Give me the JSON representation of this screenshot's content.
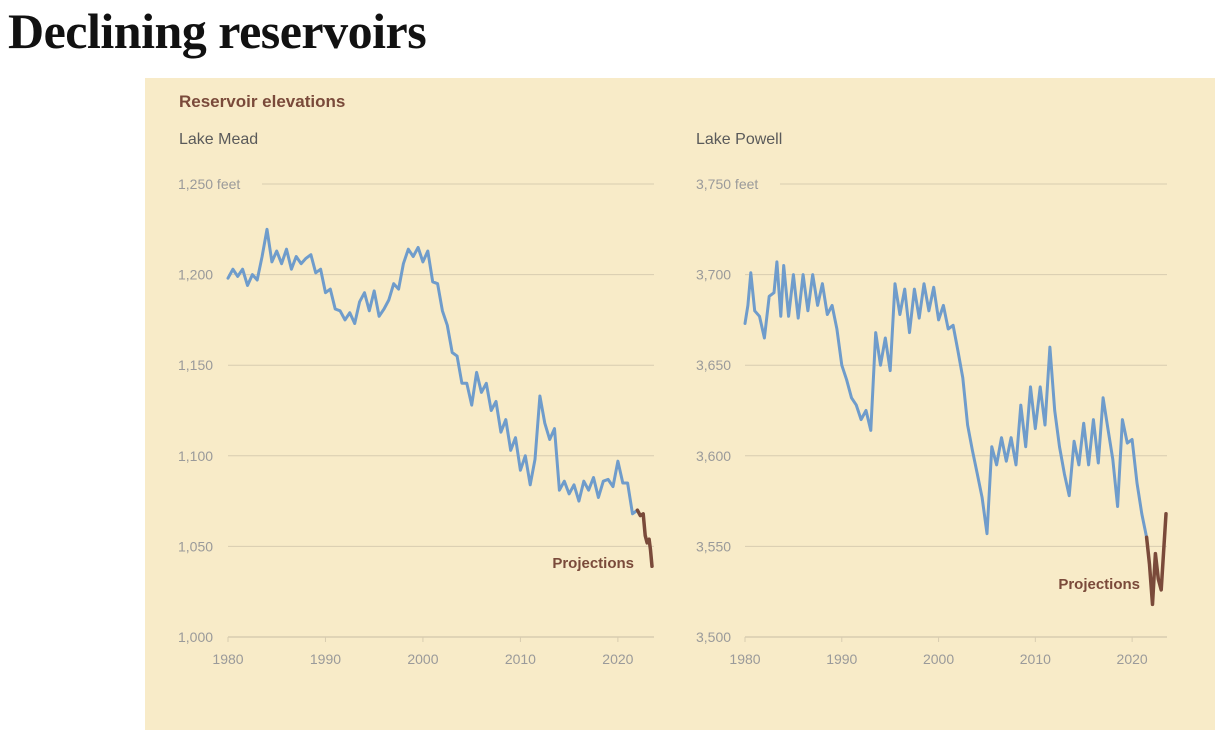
{
  "page": {
    "title": "Declining reservoirs"
  },
  "panel": {
    "title": "Reservoir elevations"
  },
  "colors": {
    "observed": "#6f9ccb",
    "projection": "#7a4a3a",
    "grid": "#d8ccb0",
    "panel_bg": "#f8ebc8"
  },
  "chart_data": [
    {
      "type": "line",
      "subtitle": "Lake Mead",
      "ylabel": "",
      "xlabel": "",
      "xlim": [
        1980,
        2023.5
      ],
      "ylim": [
        1000,
        1250
      ],
      "x_ticks": [
        1980,
        1990,
        2000,
        2010,
        2020
      ],
      "x_tick_labels": [
        "1980",
        "1990",
        "2000",
        "2010",
        "2020"
      ],
      "y_ticks": [
        1000,
        1050,
        1100,
        1150,
        1200,
        1250
      ],
      "y_tick_labels": [
        "1,000",
        "1,050",
        "1,100",
        "1,150",
        "1,200",
        "1,250 feet"
      ],
      "grid": true,
      "annotation": "Projections",
      "series": [
        {
          "role": "observed",
          "points": [
            [
              1980,
              1198
            ],
            [
              1980.5,
              1203
            ],
            [
              1981,
              1199
            ],
            [
              1981.5,
              1203
            ],
            [
              1982,
              1194
            ],
            [
              1982.5,
              1200
            ],
            [
              1983,
              1197
            ],
            [
              1983.5,
              1210
            ],
            [
              1984,
              1225
            ],
            [
              1984.5,
              1207
            ],
            [
              1985,
              1213
            ],
            [
              1985.5,
              1206
            ],
            [
              1986,
              1214
            ],
            [
              1986.5,
              1203
            ],
            [
              1987,
              1210
            ],
            [
              1987.5,
              1206
            ],
            [
              1988,
              1209
            ],
            [
              1988.5,
              1211
            ],
            [
              1989,
              1201
            ],
            [
              1989.5,
              1203
            ],
            [
              1990,
              1190
            ],
            [
              1990.5,
              1192
            ],
            [
              1991,
              1181
            ],
            [
              1991.5,
              1180
            ],
            [
              1992,
              1175
            ],
            [
              1992.5,
              1179
            ],
            [
              1993,
              1173
            ],
            [
              1993.5,
              1185
            ],
            [
              1994,
              1190
            ],
            [
              1994.5,
              1180
            ],
            [
              1995,
              1191
            ],
            [
              1995.5,
              1177
            ],
            [
              1996,
              1181
            ],
            [
              1996.5,
              1186
            ],
            [
              1997,
              1195
            ],
            [
              1997.5,
              1192
            ],
            [
              1998,
              1206
            ],
            [
              1998.5,
              1214
            ],
            [
              1999,
              1210
            ],
            [
              1999.5,
              1215
            ],
            [
              2000,
              1207
            ],
            [
              2000.5,
              1213
            ],
            [
              2001,
              1196
            ],
            [
              2001.5,
              1195
            ],
            [
              2002,
              1180
            ],
            [
              2002.5,
              1172
            ],
            [
              2003,
              1157
            ],
            [
              2003.5,
              1155
            ],
            [
              2004,
              1140
            ],
            [
              2004.5,
              1140
            ],
            [
              2005,
              1128
            ],
            [
              2005.5,
              1146
            ],
            [
              2006,
              1135
            ],
            [
              2006.5,
              1140
            ],
            [
              2007,
              1125
            ],
            [
              2007.5,
              1130
            ],
            [
              2008,
              1113
            ],
            [
              2008.5,
              1120
            ],
            [
              2009,
              1103
            ],
            [
              2009.5,
              1110
            ],
            [
              2010,
              1092
            ],
            [
              2010.5,
              1100
            ],
            [
              2011,
              1084
            ],
            [
              2011.5,
              1098
            ],
            [
              2012,
              1133
            ],
            [
              2012.5,
              1118
            ],
            [
              2013,
              1109
            ],
            [
              2013.5,
              1115
            ],
            [
              2014,
              1081
            ],
            [
              2014.5,
              1086
            ],
            [
              2015,
              1079
            ],
            [
              2015.5,
              1084
            ],
            [
              2016,
              1075
            ],
            [
              2016.5,
              1086
            ],
            [
              2017,
              1081
            ],
            [
              2017.5,
              1088
            ],
            [
              2018,
              1077
            ],
            [
              2018.5,
              1086
            ],
            [
              2019,
              1087
            ],
            [
              2019.5,
              1083
            ],
            [
              2020,
              1097
            ],
            [
              2020.5,
              1085
            ],
            [
              2021,
              1085
            ],
            [
              2021.5,
              1068
            ],
            [
              2022,
              1070
            ]
          ]
        },
        {
          "role": "projection",
          "points": [
            [
              2022,
              1070
            ],
            [
              2022.3,
              1067
            ],
            [
              2022.6,
              1068
            ],
            [
              2022.8,
              1056
            ],
            [
              2023,
              1052
            ],
            [
              2023.2,
              1054
            ],
            [
              2023.35,
              1048
            ],
            [
              2023.5,
              1039
            ]
          ]
        }
      ]
    },
    {
      "type": "line",
      "subtitle": "Lake Powell",
      "ylabel": "",
      "xlabel": "",
      "xlim": [
        1980,
        2023.5
      ],
      "ylim": [
        3500,
        3750
      ],
      "x_ticks": [
        1980,
        1990,
        2000,
        2010,
        2020
      ],
      "x_tick_labels": [
        "1980",
        "1990",
        "2000",
        "2010",
        "2020"
      ],
      "y_ticks": [
        3500,
        3550,
        3600,
        3650,
        3700,
        3750
      ],
      "y_tick_labels": [
        "3,500",
        "3,550",
        "3,600",
        "3,650",
        "3,700",
        "3,750 feet"
      ],
      "grid": true,
      "annotation": "Projections",
      "series": [
        {
          "role": "observed",
          "points": [
            [
              1980,
              3673
            ],
            [
              1980.3,
              3683
            ],
            [
              1980.6,
              3701
            ],
            [
              1981,
              3680
            ],
            [
              1981.5,
              3677
            ],
            [
              1982,
              3665
            ],
            [
              1982.5,
              3688
            ],
            [
              1983,
              3690
            ],
            [
              1983.3,
              3707
            ],
            [
              1983.7,
              3677
            ],
            [
              1984,
              3705
            ],
            [
              1984.5,
              3677
            ],
            [
              1985,
              3700
            ],
            [
              1985.5,
              3676
            ],
            [
              1986,
              3700
            ],
            [
              1986.5,
              3680
            ],
            [
              1987,
              3700
            ],
            [
              1987.5,
              3683
            ],
            [
              1988,
              3695
            ],
            [
              1988.5,
              3678
            ],
            [
              1989,
              3683
            ],
            [
              1989.5,
              3670
            ],
            [
              1990,
              3650
            ],
            [
              1990.5,
              3642
            ],
            [
              1991,
              3632
            ],
            [
              1991.5,
              3628
            ],
            [
              1992,
              3620
            ],
            [
              1992.5,
              3625
            ],
            [
              1993,
              3614
            ],
            [
              1993.5,
              3668
            ],
            [
              1994,
              3650
            ],
            [
              1994.5,
              3665
            ],
            [
              1995,
              3647
            ],
            [
              1995.5,
              3695
            ],
            [
              1996,
              3678
            ],
            [
              1996.5,
              3692
            ],
            [
              1997,
              3668
            ],
            [
              1997.5,
              3692
            ],
            [
              1998,
              3676
            ],
            [
              1998.5,
              3695
            ],
            [
              1999,
              3680
            ],
            [
              1999.5,
              3693
            ],
            [
              2000,
              3675
            ],
            [
              2000.5,
              3683
            ],
            [
              2001,
              3670
            ],
            [
              2001.5,
              3672
            ],
            [
              2002,
              3658
            ],
            [
              2002.5,
              3643
            ],
            [
              2003,
              3617
            ],
            [
              2003.5,
              3603
            ],
            [
              2004,
              3590
            ],
            [
              2004.5,
              3577
            ],
            [
              2005,
              3557
            ],
            [
              2005.5,
              3605
            ],
            [
              2006,
              3595
            ],
            [
              2006.5,
              3610
            ],
            [
              2007,
              3597
            ],
            [
              2007.5,
              3610
            ],
            [
              2008,
              3595
            ],
            [
              2008.5,
              3628
            ],
            [
              2009,
              3605
            ],
            [
              2009.5,
              3638
            ],
            [
              2010,
              3615
            ],
            [
              2010.5,
              3638
            ],
            [
              2011,
              3617
            ],
            [
              2011.5,
              3660
            ],
            [
              2012,
              3625
            ],
            [
              2012.5,
              3605
            ],
            [
              2013,
              3590
            ],
            [
              2013.5,
              3578
            ],
            [
              2014,
              3608
            ],
            [
              2014.5,
              3595
            ],
            [
              2015,
              3618
            ],
            [
              2015.5,
              3595
            ],
            [
              2016,
              3620
            ],
            [
              2016.5,
              3596
            ],
            [
              2017,
              3632
            ],
            [
              2017.5,
              3615
            ],
            [
              2018,
              3598
            ],
            [
              2018.5,
              3572
            ],
            [
              2019,
              3620
            ],
            [
              2019.5,
              3607
            ],
            [
              2020,
              3609
            ],
            [
              2020.5,
              3585
            ],
            [
              2021,
              3568
            ],
            [
              2021.5,
              3555
            ]
          ]
        },
        {
          "role": "projection",
          "points": [
            [
              2021.5,
              3555
            ],
            [
              2021.8,
              3540
            ],
            [
              2022.1,
              3518
            ],
            [
              2022.4,
              3546
            ],
            [
              2022.7,
              3532
            ],
            [
              2023,
              3526
            ],
            [
              2023.5,
              3568
            ]
          ]
        }
      ]
    }
  ]
}
